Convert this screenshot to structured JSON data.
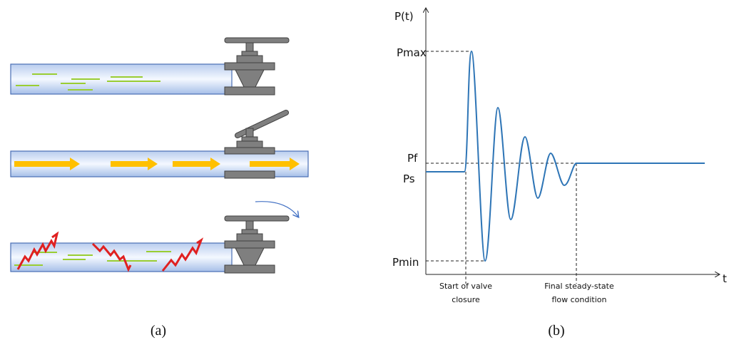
{
  "figure_a": {
    "caption": "(a)"
  },
  "figure_b": {
    "caption": "(b)",
    "y_axis_label": "P(t)",
    "x_axis_label": "t",
    "levels": {
      "pmax": "Pmax",
      "pf": "Pf",
      "ps": "Ps",
      "pmin": "Pmin"
    },
    "events": {
      "start": [
        "Start of valve",
        "closure"
      ],
      "final": [
        "Final steady-state",
        "flow condition"
      ]
    }
  }
}
